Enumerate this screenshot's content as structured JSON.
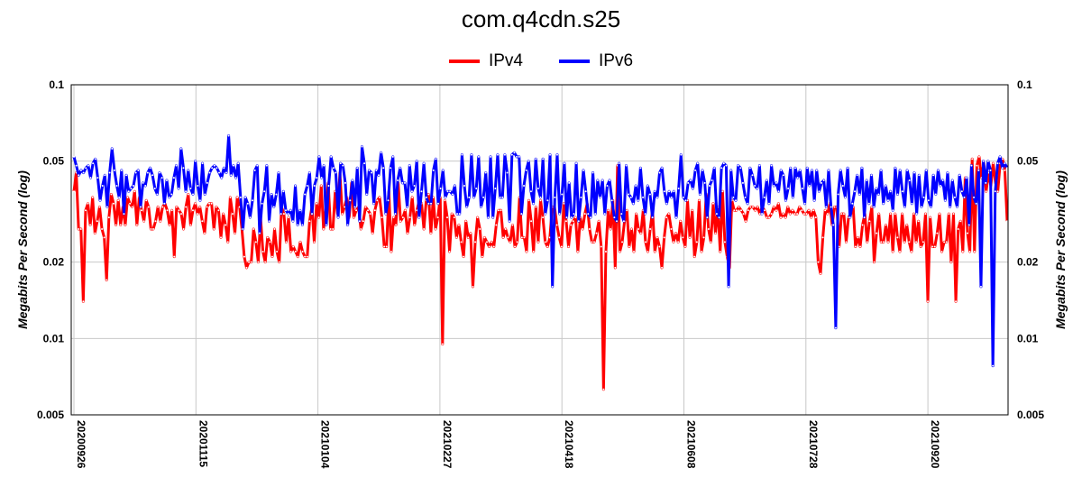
{
  "chart_data": {
    "type": "line",
    "title": "com.q4cdn.s25",
    "ylabel": "Megabits Per Second (log)",
    "xlabel": "",
    "y_scale": "log",
    "ylim": [
      0.005,
      0.1
    ],
    "y_ticks": [
      "0.005",
      "0.01",
      "0.02",
      "0.05",
      "0.1"
    ],
    "x_ticks": [
      "20200926",
      "20201115",
      "20210104",
      "20210227",
      "20210418",
      "20210608",
      "20210728",
      "20210920"
    ],
    "grid": true,
    "legend": "top-center",
    "series": [
      {
        "name": "IPv4",
        "color": "#ff0000",
        "values": [
          0.038,
          0.045,
          0.027,
          0.027,
          0.014,
          0.032,
          0.034,
          0.028,
          0.036,
          0.026,
          0.029,
          0.033,
          0.027,
          0.025,
          0.017,
          0.03,
          0.037,
          0.034,
          0.028,
          0.035,
          0.028,
          0.033,
          0.028,
          0.036,
          0.034,
          0.033,
          0.038,
          0.028,
          0.036,
          0.032,
          0.029,
          0.035,
          0.033,
          0.027,
          0.027,
          0.029,
          0.033,
          0.029,
          0.033,
          0.034,
          0.032,
          0.028,
          0.032,
          0.021,
          0.033,
          0.032,
          0.031,
          0.027,
          0.033,
          0.037,
          0.028,
          0.032,
          0.034,
          0.031,
          0.033,
          0.029,
          0.026,
          0.033,
          0.034,
          0.034,
          0.027,
          0.033,
          0.032,
          0.025,
          0.031,
          0.028,
          0.024,
          0.036,
          0.031,
          0.026,
          0.036,
          0.033,
          0.027,
          0.021,
          0.019,
          0.02,
          0.02,
          0.027,
          0.024,
          0.02,
          0.03,
          0.022,
          0.02,
          0.025,
          0.024,
          0.021,
          0.027,
          0.022,
          0.02,
          0.033,
          0.031,
          0.024,
          0.03,
          0.022,
          0.023,
          0.022,
          0.021,
          0.024,
          0.022,
          0.021,
          0.021,
          0.029,
          0.033,
          0.024,
          0.034,
          0.03,
          0.04,
          0.027,
          0.033,
          0.041,
          0.027,
          0.027,
          0.038,
          0.031,
          0.045,
          0.031,
          0.033,
          0.036,
          0.03,
          0.041,
          0.03,
          0.032,
          0.033,
          0.027,
          0.029,
          0.033,
          0.032,
          0.031,
          0.026,
          0.032,
          0.035,
          0.036,
          0.03,
          0.023,
          0.023,
          0.038,
          0.022,
          0.03,
          0.028,
          0.041,
          0.029,
          0.03,
          0.032,
          0.026,
          0.03,
          0.036,
          0.028,
          0.032,
          0.035,
          0.034,
          0.027,
          0.035,
          0.037,
          0.026,
          0.036,
          0.027,
          0.03,
          0.036,
          0.0095,
          0.035,
          0.03,
          0.022,
          0.031,
          0.03,
          0.025,
          0.028,
          0.024,
          0.021,
          0.029,
          0.025,
          0.026,
          0.016,
          0.024,
          0.03,
          0.027,
          0.021,
          0.025,
          0.024,
          0.023,
          0.024,
          0.023,
          0.028,
          0.032,
          0.032,
          0.025,
          0.027,
          0.025,
          0.024,
          0.028,
          0.023,
          0.024,
          0.036,
          0.025,
          0.025,
          0.022,
          0.035,
          0.029,
          0.022,
          0.033,
          0.024,
          0.035,
          0.03,
          0.024,
          0.023,
          0.025,
          0.033,
          0.033,
          0.028,
          0.025,
          0.023,
          0.034,
          0.029,
          0.023,
          0.028,
          0.029,
          0.03,
          0.022,
          0.03,
          0.027,
          0.031,
          0.034,
          0.027,
          0.024,
          0.024,
          0.026,
          0.029,
          0.023,
          0.0063,
          0.022,
          0.032,
          0.027,
          0.035,
          0.019,
          0.048,
          0.022,
          0.024,
          0.029,
          0.032,
          0.023,
          0.027,
          0.022,
          0.031,
          0.027,
          0.026,
          0.032,
          0.024,
          0.022,
          0.027,
          0.032,
          0.022,
          0.025,
          0.023,
          0.019,
          0.025,
          0.03,
          0.031,
          0.027,
          0.024,
          0.026,
          0.024,
          0.029,
          0.025,
          0.023,
          0.035,
          0.025,
          0.032,
          0.021,
          0.024,
          0.035,
          0.022,
          0.025,
          0.037,
          0.027,
          0.024,
          0.034,
          0.026,
          0.033,
          0.022,
          0.038,
          0.024,
          0.021,
          0.019,
          0.035,
          0.032,
          0.032,
          0.033,
          0.032,
          0.031,
          0.029,
          0.032,
          0.033,
          0.033,
          0.032,
          0.033,
          0.031,
          0.033,
          0.032,
          0.03,
          0.03,
          0.031,
          0.033,
          0.032,
          0.034,
          0.03,
          0.031,
          0.03,
          0.033,
          0.031,
          0.032,
          0.031,
          0.031,
          0.033,
          0.032,
          0.031,
          0.031,
          0.032,
          0.03,
          0.032,
          0.03,
          0.02,
          0.018,
          0.025,
          0.032,
          0.031,
          0.034,
          0.028,
          0.033,
          0.033,
          0.023,
          0.031,
          0.031,
          0.024,
          0.03,
          0.031,
          0.033,
          0.023,
          0.025,
          0.023,
          0.028,
          0.031,
          0.024,
          0.029,
          0.033,
          0.02,
          0.026,
          0.031,
          0.024,
          0.024,
          0.028,
          0.024,
          0.031,
          0.022,
          0.031,
          0.025,
          0.022,
          0.031,
          0.024,
          0.028,
          0.024,
          0.022,
          0.031,
          0.024,
          0.029,
          0.023,
          0.024,
          0.031,
          0.014,
          0.03,
          0.023,
          0.023,
          0.026,
          0.031,
          0.022,
          0.024,
          0.024,
          0.031,
          0.02,
          0.031,
          0.014,
          0.027,
          0.029,
          0.022,
          0.043,
          0.026,
          0.022,
          0.051,
          0.022,
          0.048,
          0.052,
          0.043,
          0.049,
          0.038,
          0.045,
          0.04,
          0.049,
          0.041,
          0.038,
          0.049,
          0.051,
          0.046,
          0.029
        ],
        "smooth": false
      },
      {
        "name": "IPv6",
        "color": "#0000ff",
        "values": [
          0.052,
          0.048,
          0.044,
          0.046,
          0.045,
          0.047,
          0.048,
          0.043,
          0.049,
          0.051,
          0.043,
          0.035,
          0.04,
          0.044,
          0.033,
          0.045,
          0.056,
          0.046,
          0.04,
          0.036,
          0.046,
          0.031,
          0.044,
          0.038,
          0.039,
          0.04,
          0.045,
          0.046,
          0.033,
          0.041,
          0.04,
          0.045,
          0.047,
          0.044,
          0.039,
          0.037,
          0.045,
          0.043,
          0.034,
          0.042,
          0.036,
          0.037,
          0.043,
          0.048,
          0.039,
          0.056,
          0.047,
          0.038,
          0.046,
          0.039,
          0.037,
          0.05,
          0.04,
          0.035,
          0.049,
          0.037,
          0.041,
          0.045,
          0.047,
          0.048,
          0.047,
          0.045,
          0.043,
          0.047,
          0.045,
          0.063,
          0.044,
          0.048,
          0.043,
          0.049,
          0.036,
          0.027,
          0.036,
          0.034,
          0.03,
          0.035,
          0.046,
          0.048,
          0.026,
          0.034,
          0.038,
          0.048,
          0.029,
          0.037,
          0.033,
          0.037,
          0.045,
          0.031,
          0.038,
          0.032,
          0.031,
          0.032,
          0.029,
          0.04,
          0.028,
          0.032,
          0.028,
          0.037,
          0.04,
          0.045,
          0.031,
          0.04,
          0.043,
          0.052,
          0.043,
          0.048,
          0.028,
          0.04,
          0.052,
          0.047,
          0.045,
          0.03,
          0.049,
          0.048,
          0.041,
          0.028,
          0.035,
          0.042,
          0.033,
          0.047,
          0.029,
          0.057,
          0.049,
          0.037,
          0.046,
          0.045,
          0.034,
          0.046,
          0.044,
          0.054,
          0.047,
          0.031,
          0.035,
          0.047,
          0.052,
          0.031,
          0.042,
          0.047,
          0.041,
          0.041,
          0.033,
          0.048,
          0.038,
          0.04,
          0.05,
          0.03,
          0.038,
          0.049,
          0.036,
          0.034,
          0.034,
          0.046,
          0.051,
          0.034,
          0.039,
          0.046,
          0.036,
          0.038,
          0.038,
          0.037,
          0.04,
          0.031,
          0.031,
          0.053,
          0.04,
          0.033,
          0.036,
          0.053,
          0.036,
          0.039,
          0.052,
          0.033,
          0.036,
          0.045,
          0.03,
          0.052,
          0.03,
          0.039,
          0.053,
          0.036,
          0.036,
          0.053,
          0.045,
          0.029,
          0.053,
          0.054,
          0.052,
          0.052,
          0.031,
          0.04,
          0.046,
          0.05,
          0.038,
          0.034,
          0.051,
          0.039,
          0.036,
          0.051,
          0.031,
          0.035,
          0.053,
          0.016,
          0.036,
          0.053,
          0.031,
          0.037,
          0.049,
          0.03,
          0.041,
          0.03,
          0.031,
          0.049,
          0.029,
          0.036,
          0.046,
          0.038,
          0.031,
          0.03,
          0.045,
          0.031,
          0.042,
          0.036,
          0.042,
          0.031,
          0.04,
          0.042,
          0.035,
          0.03,
          0.029,
          0.049,
          0.031,
          0.029,
          0.048,
          0.037,
          0.036,
          0.034,
          0.04,
          0.035,
          0.047,
          0.036,
          0.031,
          0.04,
          0.037,
          0.03,
          0.038,
          0.036,
          0.045,
          0.047,
          0.038,
          0.034,
          0.038,
          0.036,
          0.038,
          0.03,
          0.039,
          0.053,
          0.036,
          0.035,
          0.041,
          0.042,
          0.039,
          0.046,
          0.049,
          0.037,
          0.046,
          0.041,
          0.03,
          0.04,
          0.042,
          0.047,
          0.031,
          0.03,
          0.047,
          0.049,
          0.048,
          0.016,
          0.046,
          0.036,
          0.035,
          0.048,
          0.047,
          0.041,
          0.036,
          0.034,
          0.047,
          0.044,
          0.04,
          0.039,
          0.048,
          0.031,
          0.036,
          0.042,
          0.034,
          0.048,
          0.04,
          0.041,
          0.038,
          0.046,
          0.044,
          0.035,
          0.039,
          0.047,
          0.036,
          0.047,
          0.043,
          0.046,
          0.039,
          0.034,
          0.047,
          0.04,
          0.046,
          0.035,
          0.046,
          0.038,
          0.041,
          0.042,
          0.033,
          0.046,
          0.033,
          0.028,
          0.011,
          0.037,
          0.046,
          0.04,
          0.036,
          0.047,
          0.03,
          0.034,
          0.038,
          0.044,
          0.037,
          0.047,
          0.03,
          0.042,
          0.034,
          0.044,
          0.033,
          0.039,
          0.037,
          0.046,
          0.034,
          0.04,
          0.035,
          0.038,
          0.032,
          0.047,
          0.037,
          0.046,
          0.038,
          0.033,
          0.046,
          0.042,
          0.034,
          0.045,
          0.031,
          0.044,
          0.033,
          0.036,
          0.046,
          0.035,
          0.033,
          0.044,
          0.037,
          0.046,
          0.04,
          0.042,
          0.035,
          0.045,
          0.033,
          0.042,
          0.036,
          0.033,
          0.044,
          0.038,
          0.036,
          0.043,
          0.028,
          0.048,
          0.036,
          0.034,
          0.046,
          0.016,
          0.05,
          0.041,
          0.05,
          0.046,
          0.0078,
          0.038,
          0.049,
          0.052,
          0.047,
          0.049,
          0.047
        ],
        "smooth": false
      }
    ]
  }
}
